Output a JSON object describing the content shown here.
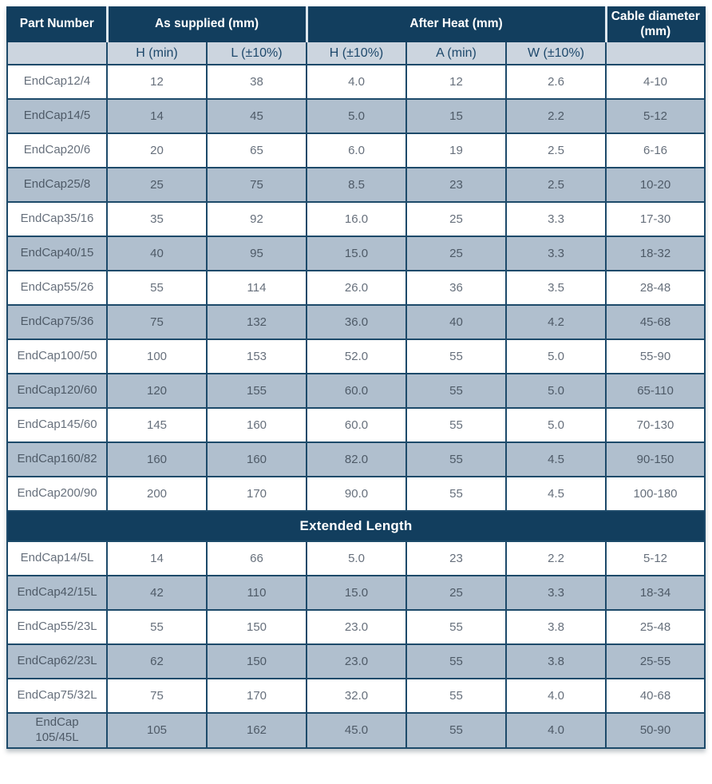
{
  "table": {
    "header_groups": [
      {
        "label": "Part Number",
        "colspan": 1
      },
      {
        "label": "As supplied (mm)",
        "colspan": 2
      },
      {
        "label": "After Heat (mm)",
        "colspan": 3
      },
      {
        "label": "Cable diameter (mm)",
        "colspan": 1
      }
    ],
    "sub_headers": [
      "H (min)",
      "L (±10%)",
      "H (±10%)",
      "A (min)",
      "W (±10%)"
    ],
    "rows": [
      {
        "part": "EndCap12/4",
        "h_supplied": "12",
        "l_supplied": "38",
        "h_heat": "4.0",
        "a_heat": "12",
        "w_heat": "2.6",
        "cable": "4-10"
      },
      {
        "part": "EndCap14/5",
        "h_supplied": "14",
        "l_supplied": "45",
        "h_heat": "5.0",
        "a_heat": "15",
        "w_heat": "2.2",
        "cable": "5-12"
      },
      {
        "part": "EndCap20/6",
        "h_supplied": "20",
        "l_supplied": "65",
        "h_heat": "6.0",
        "a_heat": "19",
        "w_heat": "2.5",
        "cable": "6-16"
      },
      {
        "part": "EndCap25/8",
        "h_supplied": "25",
        "l_supplied": "75",
        "h_heat": "8.5",
        "a_heat": "23",
        "w_heat": "2.5",
        "cable": "10-20"
      },
      {
        "part": "EndCap35/16",
        "h_supplied": "35",
        "l_supplied": "92",
        "h_heat": "16.0",
        "a_heat": "25",
        "w_heat": "3.3",
        "cable": "17-30"
      },
      {
        "part": "EndCap40/15",
        "h_supplied": "40",
        "l_supplied": "95",
        "h_heat": "15.0",
        "a_heat": "25",
        "w_heat": "3.3",
        "cable": "18-32"
      },
      {
        "part": "EndCap55/26",
        "h_supplied": "55",
        "l_supplied": "114",
        "h_heat": "26.0",
        "a_heat": "36",
        "w_heat": "3.5",
        "cable": "28-48"
      },
      {
        "part": "EndCap75/36",
        "h_supplied": "75",
        "l_supplied": "132",
        "h_heat": "36.0",
        "a_heat": "40",
        "w_heat": "4.2",
        "cable": "45-68"
      },
      {
        "part": "EndCap100/50",
        "h_supplied": "100",
        "l_supplied": "153",
        "h_heat": "52.0",
        "a_heat": "55",
        "w_heat": "5.0",
        "cable": "55-90"
      },
      {
        "part": "EndCap120/60",
        "h_supplied": "120",
        "l_supplied": "155",
        "h_heat": "60.0",
        "a_heat": "55",
        "w_heat": "5.0",
        "cable": "65-110"
      },
      {
        "part": "EndCap145/60",
        "h_supplied": "145",
        "l_supplied": "160",
        "h_heat": "60.0",
        "a_heat": "55",
        "w_heat": "5.0",
        "cable": "70-130"
      },
      {
        "part": "EndCap160/82",
        "h_supplied": "160",
        "l_supplied": "160",
        "h_heat": "82.0",
        "a_heat": "55",
        "w_heat": "4.5",
        "cable": "90-150"
      },
      {
        "part": "EndCap200/90",
        "h_supplied": "200",
        "l_supplied": "170",
        "h_heat": "90.0",
        "a_heat": "55",
        "w_heat": "4.5",
        "cable": "100-180"
      }
    ],
    "section_label": "Extended Length",
    "extended_rows": [
      {
        "part": "EndCap14/5L",
        "h_supplied": "14",
        "l_supplied": "66",
        "h_heat": "5.0",
        "a_heat": "23",
        "w_heat": "2.2",
        "cable": "5-12"
      },
      {
        "part": "EndCap42/15L",
        "h_supplied": "42",
        "l_supplied": "110",
        "h_heat": "15.0",
        "a_heat": "25",
        "w_heat": "3.3",
        "cable": "18-34"
      },
      {
        "part": "EndCap55/23L",
        "h_supplied": "55",
        "l_supplied": "150",
        "h_heat": "23.0",
        "a_heat": "55",
        "w_heat": "3.8",
        "cable": "25-48"
      },
      {
        "part": "EndCap62/23L",
        "h_supplied": "62",
        "l_supplied": "150",
        "h_heat": "23.0",
        "a_heat": "55",
        "w_heat": "3.8",
        "cable": "25-55"
      },
      {
        "part": "EndCap75/32L",
        "h_supplied": "75",
        "l_supplied": "170",
        "h_heat": "32.0",
        "a_heat": "55",
        "w_heat": "4.0",
        "cable": "40-68"
      },
      {
        "part": "EndCap\n105/45L",
        "h_supplied": "105",
        "l_supplied": "162",
        "h_heat": "45.0",
        "a_heat": "55",
        "w_heat": "4.0",
        "cable": "50-90"
      }
    ]
  }
}
